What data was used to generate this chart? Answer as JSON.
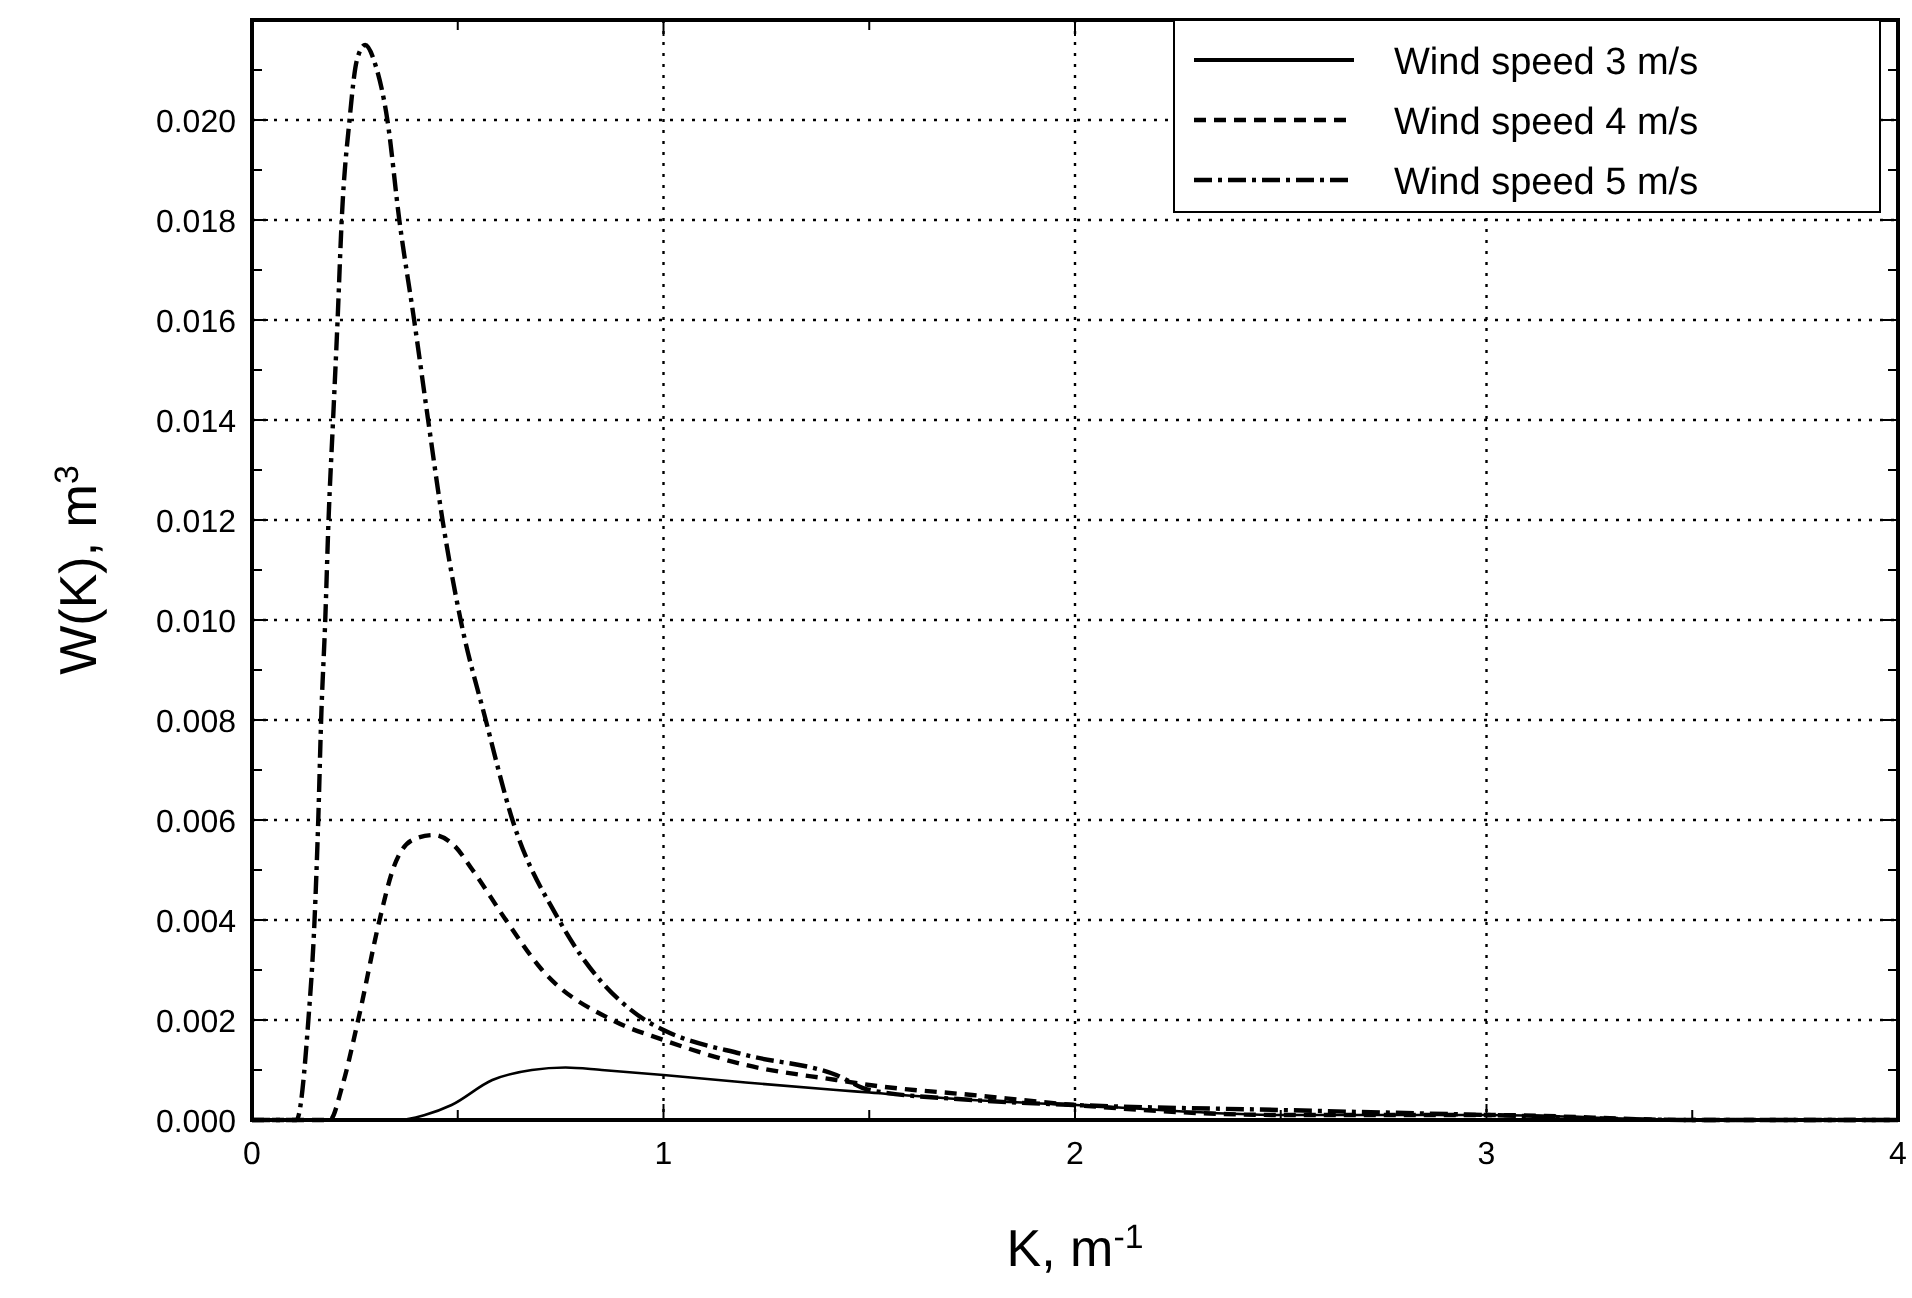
{
  "chart_data": {
    "type": "line",
    "xlabel": "K, m$^{-1}$",
    "ylabel": "W(K), m$^{3}$",
    "xlim": [
      0,
      4
    ],
    "ylim": [
      0,
      0.022
    ],
    "xticks": [
      0,
      {
        "value": 0.5,
        "label": null
      },
      1,
      {
        "value": 1.5,
        "label": null
      },
      2,
      {
        "value": 2.5,
        "label": null
      },
      3,
      {
        "value": 3.5,
        "label": null
      },
      4
    ],
    "yticks": [
      {
        "value": 0,
        "label": "0.000"
      },
      {
        "value": 0.001,
        "label": null
      },
      {
        "value": 0.002,
        "label": "0.002"
      },
      {
        "value": 0.003,
        "label": null
      },
      {
        "value": 0.004,
        "label": "0.004"
      },
      {
        "value": 0.005,
        "label": null
      },
      {
        "value": 0.006,
        "label": "0.006"
      },
      {
        "value": 0.007,
        "label": null
      },
      {
        "value": 0.008,
        "label": "0.008"
      },
      {
        "value": 0.009,
        "label": null
      },
      {
        "value": 0.01,
        "label": "0.010"
      },
      {
        "value": 0.011,
        "label": null
      },
      {
        "value": 0.012,
        "label": "0.012"
      },
      {
        "value": 0.013,
        "label": null
      },
      {
        "value": 0.014,
        "label": "0.014"
      },
      {
        "value": 0.015,
        "label": null
      },
      {
        "value": 0.016,
        "label": "0.016"
      },
      {
        "value": 0.017,
        "label": null
      },
      {
        "value": 0.018,
        "label": "0.018"
      },
      {
        "value": 0.019,
        "label": null
      },
      {
        "value": 0.02,
        "label": "0.020"
      },
      {
        "value": 0.021,
        "label": null
      }
    ],
    "grid": true,
    "legend": "top right",
    "series": [
      {
        "name": "Wind speed 3 m/s",
        "color": "#000000",
        "line_style": "solid",
        "x": [
          0,
          0.3,
          0.358,
          0.42,
          0.485,
          0.584,
          0.68,
          0.762,
          0.85,
          1,
          1.2,
          1.42,
          1.5,
          1.75,
          2,
          2.5,
          3,
          3.5,
          4
        ],
        "values": [
          0,
          0,
          0,
          0.0001,
          0.0003,
          0.0008,
          0.001,
          0.00105,
          0.001,
          0.0009,
          0.00075,
          0.0006,
          0.00055,
          0.0004,
          0.0003,
          0.0001,
          0.0001,
          0,
          0
        ]
      },
      {
        "name": "Wind speed 4 m/s",
        "color": "#000000",
        "line_style": "dashed",
        "x": [
          0,
          0.15,
          0.189,
          0.22,
          0.258,
          0.31,
          0.342,
          0.39,
          0.442,
          0.49,
          0.536,
          0.617,
          0.705,
          0.875,
          1,
          1.2,
          1.42,
          1.5,
          1.75,
          2,
          2.5,
          3,
          3.5,
          4
        ],
        "values": [
          0,
          0,
          0,
          0.0007,
          0.002,
          0.004,
          0.005,
          0.0056,
          0.0057,
          0.0055,
          0.005,
          0.004,
          0.003,
          0.002,
          0.0016,
          0.0011,
          0.0008,
          0.0007,
          0.0005,
          0.0003,
          0.0001,
          0.0001,
          0,
          0
        ]
      },
      {
        "name": "Wind speed 5 m/s",
        "color": "#000000",
        "line_style": "dashdot",
        "x": [
          0,
          0.08,
          0.108,
          0.137,
          0.152,
          0.161,
          0.168,
          0.178,
          0.186,
          0.197,
          0.208,
          0.218,
          0.237,
          0.255,
          0.275,
          0.3,
          0.329,
          0.358,
          0.394,
          0.428,
          0.463,
          0.507,
          0.568,
          0.633,
          0.746,
          0.955,
          1,
          1.2,
          1.42,
          1.5,
          1.75,
          2,
          2.5,
          3,
          3.5,
          4
        ],
        "values": [
          0,
          0,
          0,
          0.002,
          0.004,
          0.006,
          0.008,
          0.01,
          0.012,
          0.014,
          0.016,
          0.018,
          0.02,
          0.0212,
          0.0215,
          0.0211,
          0.02,
          0.018,
          0.016,
          0.014,
          0.012,
          0.01,
          0.008,
          0.006,
          0.004,
          0.002,
          0.0018,
          0.0013,
          0.0009,
          0.0006,
          0.0004,
          0.0003,
          0.0002,
          0.0001,
          0,
          0
        ]
      }
    ]
  }
}
